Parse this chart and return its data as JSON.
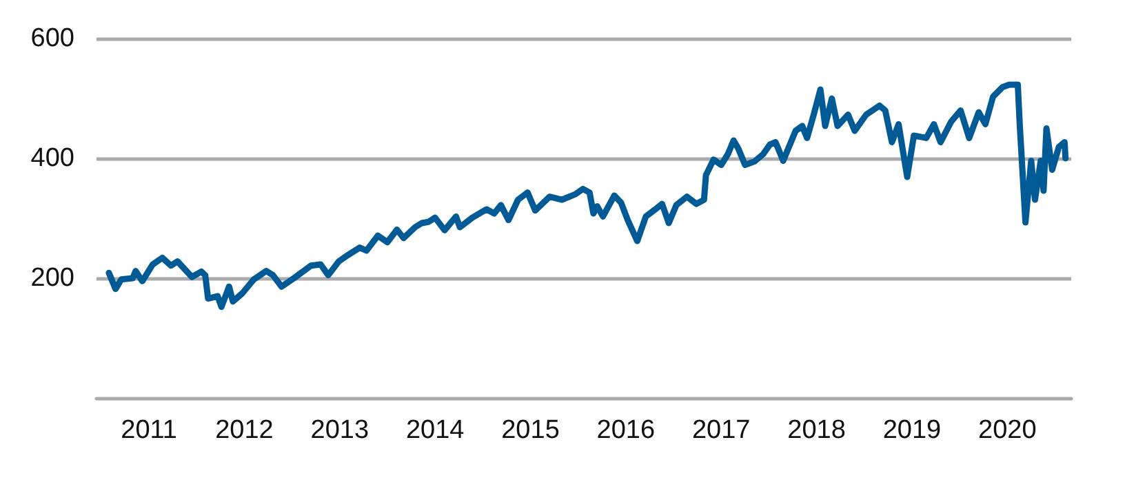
{
  "chart_data": {
    "type": "line",
    "x": [
      2010.58,
      2010.65,
      2010.71,
      2010.83,
      2010.86,
      2010.93,
      2011.04,
      2011.14,
      2011.23,
      2011.3,
      2011.45,
      2011.55,
      2011.59,
      2011.62,
      2011.72,
      2011.76,
      2011.84,
      2011.88,
      2011.98,
      2012.1,
      2012.23,
      2012.3,
      2012.39,
      2012.52,
      2012.7,
      2012.8,
      2012.88,
      2012.99,
      2013.09,
      2013.21,
      2013.28,
      2013.4,
      2013.5,
      2013.6,
      2013.67,
      2013.79,
      2013.86,
      2013.93,
      2014.0,
      2014.1,
      2014.22,
      2014.26,
      2014.39,
      2014.54,
      2014.62,
      2014.69,
      2014.77,
      2014.87,
      2014.97,
      2015.05,
      2015.2,
      2015.33,
      2015.47,
      2015.55,
      2015.62,
      2015.66,
      2015.7,
      2015.76,
      2015.88,
      2015.95,
      2016.02,
      2016.12,
      2016.21,
      2016.31,
      2016.38,
      2016.45,
      2016.53,
      2016.64,
      2016.74,
      2016.82,
      2016.84,
      2016.92,
      2017.0,
      2017.07,
      2017.13,
      2017.18,
      2017.25,
      2017.35,
      2017.44,
      2017.51,
      2017.57,
      2017.65,
      2017.78,
      2017.85,
      2017.9,
      2017.97,
      2018.04,
      2018.09,
      2018.16,
      2018.22,
      2018.33,
      2018.4,
      2018.52,
      2018.66,
      2018.72,
      2018.79,
      2018.86,
      2018.95,
      2019.02,
      2019.15,
      2019.23,
      2019.3,
      2019.41,
      2019.51,
      2019.6,
      2019.7,
      2019.77,
      2019.85,
      2019.95,
      2020.02,
      2020.11,
      2020.13,
      2020.19,
      2020.25,
      2020.29,
      2020.35,
      2020.38,
      2020.41,
      2020.47,
      2020.54,
      2020.6,
      2020.61
    ],
    "series": [
      {
        "color": "#005a96",
        "values": [
          209,
          182,
          198,
          200,
          212,
          195,
          223,
          234,
          221,
          228,
          202,
          211,
          205,
          166,
          170,
          152,
          186,
          161,
          175,
          198,
          212,
          205,
          186,
          200,
          221,
          223,
          205,
          228,
          239,
          251,
          246,
          271,
          260,
          281,
          267,
          285,
          292,
          294,
          301,
          280,
          303,
          285,
          301,
          315,
          308,
          322,
          297,
          331,
          343,
          313,
          336,
          331,
          340,
          349,
          343,
          308,
          320,
          303,
          338,
          326,
          297,
          262,
          303,
          315,
          324,
          292,
          322,
          336,
          324,
          331,
          372,
          398,
          389,
          407,
          430,
          416,
          389,
          395,
          407,
          423,
          427,
          396,
          446,
          454,
          434,
          473,
          515,
          454,
          500,
          454,
          473,
          446,
          473,
          488,
          480,
          427,
          457,
          369,
          438,
          434,
          457,
          427,
          461,
          480,
          434,
          477,
          457,
          503,
          519,
          523,
          523,
          457,
          293,
          396,
          331,
          396,
          346,
          450,
          381,
          419,
          427,
          400
        ]
      }
    ],
    "xlim": [
      2010.45,
      2020.67
    ],
    "xticks": [
      2011,
      2012,
      2013,
      2014,
      2015,
      2016,
      2017,
      2018,
      2019,
      2020
    ],
    "ylim": [
      0,
      600
    ],
    "yticks": [
      200,
      400,
      600
    ],
    "grid": "y",
    "marker": "none",
    "line_style": "solid"
  }
}
